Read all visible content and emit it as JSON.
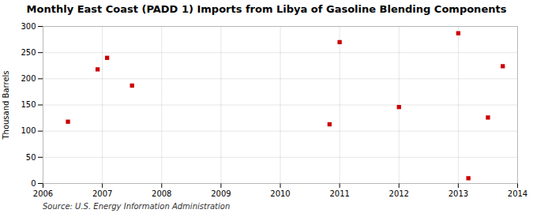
{
  "chart_data": {
    "type": "scatter",
    "title": "Monthly East Coast (PADD 1) Imports from Libya of Gasoline Blending Components",
    "ylabel": "Thousand Barrels",
    "source": "Source: U.S. Energy Information Administration",
    "x": [
      2006.42,
      2006.92,
      2007.08,
      2007.5,
      2010.83,
      2011.0,
      2012.0,
      2013.0,
      2013.17,
      2013.5,
      2013.75
    ],
    "values": [
      118,
      218,
      240,
      187,
      113,
      270,
      146,
      287,
      10,
      126,
      224
    ],
    "color": "#cc0000",
    "marker": "square",
    "xlim": [
      2006,
      2014
    ],
    "xticks": [
      2006,
      2007,
      2008,
      2009,
      2010,
      2011,
      2012,
      2013,
      2014
    ],
    "ylim": [
      0,
      300
    ],
    "yticks": [
      0,
      50,
      100,
      150,
      200,
      250,
      300
    ],
    "grid": true
  }
}
